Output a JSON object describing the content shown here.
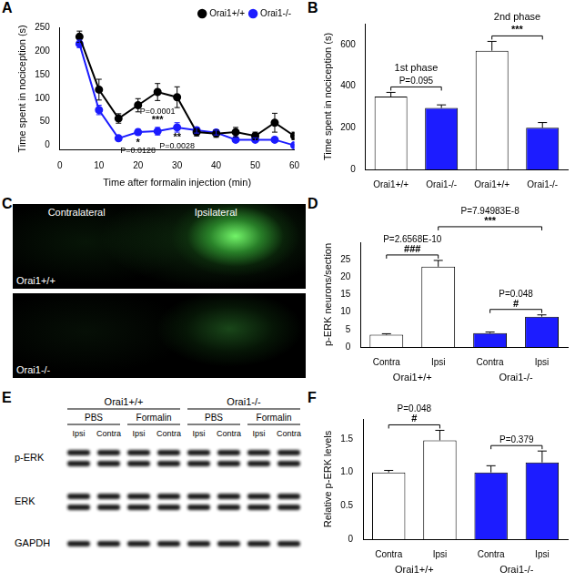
{
  "chart_data": [
    {
      "panel": "A",
      "type": "line",
      "x_label": "Time after formalin injection (min)",
      "y_label": "Time spent in nociception (s)",
      "x": [
        5,
        10,
        15,
        20,
        25,
        30,
        35,
        40,
        45,
        50,
        55,
        60
      ],
      "series": [
        {
          "name": "Orai1+/+",
          "color": "#000000",
          "marker": "circle",
          "values": [
            230,
            118,
            57,
            85,
            113,
            102,
            28,
            25,
            28,
            20,
            48,
            20
          ],
          "errors": [
            12,
            22,
            10,
            14,
            18,
            22,
            8,
            8,
            10,
            8,
            20,
            8
          ]
        },
        {
          "name": "Orai1-/-",
          "color": "#1c1cff",
          "marker": "circle",
          "values": [
            215,
            75,
            15,
            28,
            30,
            38,
            32,
            27,
            12,
            12,
            12,
            0
          ],
          "errors": [
            8,
            10,
            5,
            6,
            8,
            10,
            6,
            5,
            4,
            4,
            4,
            3
          ]
        }
      ],
      "xlim": [
        0,
        60
      ],
      "xticks": [
        0,
        10,
        20,
        30,
        40,
        50,
        60
      ],
      "ylim": [
        -10,
        250
      ],
      "yticks": [
        0,
        50,
        100,
        150,
        200,
        250
      ],
      "grid": false,
      "legend": "upper right",
      "annotations": [
        {
          "x": 20,
          "lines": [
            "*",
            "P=0.0128"
          ]
        },
        {
          "x": 25,
          "lines": [
            "P=0.0001",
            "***"
          ]
        },
        {
          "x": 30,
          "lines": [
            "**",
            "P=0.0028"
          ]
        }
      ]
    },
    {
      "panel": "B",
      "type": "bar",
      "y_label": "Time spent in nociception (s)",
      "categories": [
        "Orai1+/+",
        "Orai1-/-",
        "Orai1+/+",
        "Orai1-/-"
      ],
      "values": [
        350,
        295,
        570,
        200
      ],
      "errors": [
        20,
        15,
        45,
        25
      ],
      "colors": [
        "#ffffff",
        "#1c1cff",
        "#ffffff",
        "#1c1cff"
      ],
      "ylim": [
        0,
        700
      ],
      "yticks": [
        0,
        200,
        400,
        600
      ],
      "grid": false,
      "groups": [
        {
          "text": "1st phase",
          "categories": [
            0,
            1
          ]
        },
        {
          "text": "2nd phase",
          "categories": [
            2,
            3
          ]
        }
      ],
      "brackets": [
        {
          "bars": [
            0,
            1
          ],
          "lines": [
            "P=0.095"
          ]
        },
        {
          "bars": [
            2,
            3
          ],
          "lines": [
            "***"
          ]
        }
      ]
    },
    {
      "panel": "D",
      "type": "bar",
      "y_label": "p-ERK neurons/section",
      "categories": [
        "Contra",
        "Ipsi",
        "Contra",
        "Ipsi"
      ],
      "values": [
        3.5,
        23,
        4,
        8.7
      ],
      "errors": [
        0.3,
        1.8,
        0.3,
        0.5
      ],
      "colors": [
        "#ffffff",
        "#ffffff",
        "#1c1cff",
        "#1c1cff"
      ],
      "ylim": [
        0,
        30
      ],
      "yticks": [
        0,
        5,
        10,
        15,
        20,
        25
      ],
      "grid": false,
      "groups": [
        {
          "text": "Orai1+/+",
          "categories": [
            0,
            1
          ]
        },
        {
          "text": "Orai1-/-",
          "categories": [
            2,
            3
          ]
        }
      ],
      "brackets": [
        {
          "bars": [
            0,
            1
          ],
          "lines": [
            "P=2.6568E-10",
            "###"
          ]
        },
        {
          "bars": [
            2,
            3
          ],
          "lines": [
            "P=0.048",
            "#"
          ]
        },
        {
          "bars": [
            1,
            3
          ],
          "lines": [
            "P=7.94983E-8",
            "***"
          ]
        }
      ]
    },
    {
      "panel": "F",
      "type": "bar",
      "y_label": "Relative p-ERK levels",
      "categories": [
        "Contra",
        "Ipsi",
        "Contra",
        "Ipsi"
      ],
      "values": [
        1.0,
        1.48,
        1.0,
        1.15
      ],
      "errors": [
        0.03,
        0.15,
        0.1,
        0.17
      ],
      "colors": [
        "#ffffff",
        "#ffffff",
        "#1c1cff",
        "#1c1cff"
      ],
      "ylim": [
        0,
        1.8
      ],
      "yticks": [
        0,
        0.5,
        {
          "value": 1,
          "label": "1.0"
        },
        1.5
      ],
      "grid": false,
      "groups": [
        {
          "text": "Orai1+/+",
          "categories": [
            0,
            1
          ]
        },
        {
          "text": "Orai1-/-",
          "categories": [
            2,
            3
          ]
        }
      ],
      "brackets": [
        {
          "bars": [
            0,
            1
          ],
          "lines": [
            "P=0.048",
            "#"
          ]
        },
        {
          "bars": [
            2,
            3
          ],
          "lines": [
            "P=0.379"
          ]
        }
      ]
    }
  ],
  "micrograph": {
    "panel": "C",
    "columns": [
      "Contralateral",
      "Ipsilateral"
    ],
    "rows": [
      "Orai1+/+",
      "Orai1-/-"
    ]
  },
  "blot": {
    "panel": "E",
    "genotypes": [
      "Orai1+/+",
      "Orai1-/-"
    ],
    "treatments": [
      "PBS",
      "Formalin",
      "PBS",
      "Formalin"
    ],
    "lanes": [
      "Ipsi",
      "Contra",
      "Ipsi",
      "Contra",
      "Ipsi",
      "Contra",
      "Ipsi",
      "Contra"
    ],
    "rows": [
      "p-ERK",
      "ERK",
      "GAPDH"
    ]
  }
}
